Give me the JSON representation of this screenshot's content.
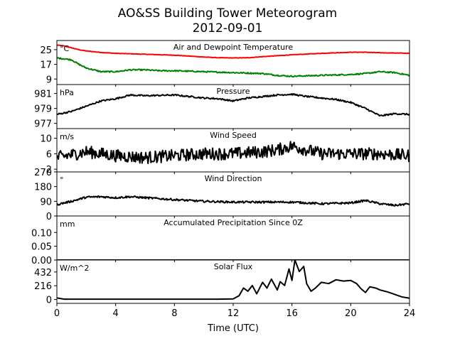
{
  "title_line1": "AO&SS Building Tower Meteorogram",
  "title_line2": "2012-09-01",
  "xlabel": "Time (UTC)",
  "x_ticks": [
    "0",
    "4",
    "8",
    "12",
    "16",
    "20",
    "24"
  ],
  "chart_data": {
    "type": "line",
    "xlim": [
      0,
      24
    ],
    "x_ticks": [
      0,
      4,
      8,
      12,
      16,
      20,
      24
    ],
    "xlabel": "Time (UTC)",
    "panels": [
      {
        "key": "temp",
        "title": "Air and Dewpoint Temperature",
        "unit": "°C",
        "ylim": [
          6,
          30
        ],
        "yticks": [
          9,
          17,
          25
        ],
        "ytick_labels": [
          "9",
          "17",
          "25"
        ],
        "series": [
          {
            "color": "#ff0000",
            "noise": 0.12,
            "points": [
              [
                0,
                27.5
              ],
              [
                0.5,
                27
              ],
              [
                1,
                26
              ],
              [
                1.5,
                25
              ],
              [
                2,
                24.3
              ],
              [
                3,
                23.5
              ],
              [
                4,
                23
              ],
              [
                6,
                22.5
              ],
              [
                8,
                22
              ],
              [
                10,
                21
              ],
              [
                11,
                20.6
              ],
              [
                12,
                20.5
              ],
              [
                13,
                20.6
              ],
              [
                14,
                21.2
              ],
              [
                16,
                22.2
              ],
              [
                18,
                23
              ],
              [
                20,
                23.6
              ],
              [
                21,
                23.6
              ],
              [
                22,
                23.3
              ],
              [
                23,
                23.2
              ],
              [
                24,
                23
              ]
            ]
          },
          {
            "color": "#008000",
            "noise": 0.35,
            "points": [
              [
                0,
                20.5
              ],
              [
                0.5,
                20
              ],
              [
                1,
                19.5
              ],
              [
                1.5,
                17
              ],
              [
                2,
                15
              ],
              [
                3,
                13
              ],
              [
                4,
                13
              ],
              [
                5,
                14
              ],
              [
                6,
                14
              ],
              [
                7,
                13.5
              ],
              [
                8,
                13.5
              ],
              [
                10,
                13
              ],
              [
                12,
                12.5
              ],
              [
                14,
                12
              ],
              [
                15,
                11
              ],
              [
                16,
                10.5
              ],
              [
                18,
                11
              ],
              [
                20,
                11.5
              ],
              [
                21,
                12
              ],
              [
                22,
                13
              ],
              [
                23,
                12.5
              ],
              [
                24,
                11
              ]
            ]
          }
        ]
      },
      {
        "key": "pressure",
        "title": "Pressure",
        "unit": "hPa",
        "ylim": [
          976.3,
          982.2
        ],
        "yticks": [
          977,
          979,
          981
        ],
        "ytick_labels": [
          "977",
          "979",
          "981"
        ],
        "series": [
          {
            "color": "#000000",
            "noise": 0.1,
            "points": [
              [
                0,
                978.2
              ],
              [
                1,
                978.6
              ],
              [
                2,
                979.3
              ],
              [
                3,
                980
              ],
              [
                4,
                980.3
              ],
              [
                5,
                980.8
              ],
              [
                6,
                980.7
              ],
              [
                8,
                980.8
              ],
              [
                10,
                980.4
              ],
              [
                11,
                980.3
              ],
              [
                12,
                980
              ],
              [
                13,
                980.4
              ],
              [
                14,
                980.6
              ],
              [
                15,
                980.8
              ],
              [
                16,
                980.9
              ],
              [
                17,
                980.6
              ],
              [
                18,
                980.4
              ],
              [
                19,
                980.2
              ],
              [
                20,
                979.8
              ],
              [
                21,
                979
              ],
              [
                22,
                978
              ],
              [
                23,
                978.3
              ],
              [
                24,
                978.2
              ]
            ]
          }
        ]
      },
      {
        "key": "wind_speed",
        "title": "Wind Speed",
        "unit": "m/s",
        "ylim": [
          1.3,
          12.5
        ],
        "yticks": [
          2,
          6,
          10
        ],
        "ytick_labels": [
          "2",
          "6",
          "10"
        ],
        "series": [
          {
            "color": "#000000",
            "noise": 1.6,
            "points": [
              [
                0,
                5
              ],
              [
                2,
                6.5
              ],
              [
                4,
                5.5
              ],
              [
                6,
                5
              ],
              [
                8,
                5.5
              ],
              [
                10,
                6
              ],
              [
                12,
                6
              ],
              [
                14,
                6.5
              ],
              [
                15,
                7
              ],
              [
                16,
                8
              ],
              [
                18,
                6
              ],
              [
                20,
                6
              ],
              [
                22,
                6
              ],
              [
                24,
                5.5
              ]
            ]
          }
        ]
      },
      {
        "key": "wind_dir",
        "title": "Wind Direction",
        "unit": "°",
        "ylim": [
          0,
          270
        ],
        "yticks": [
          0,
          90,
          180,
          270
        ],
        "ytick_labels": [
          "0",
          "90",
          "180",
          "270"
        ],
        "series": [
          {
            "color": "#000000",
            "noise": 6,
            "points": [
              [
                0,
                70
              ],
              [
                1,
                90
              ],
              [
                2,
                115
              ],
              [
                3,
                118
              ],
              [
                4,
                112
              ],
              [
                5,
                118
              ],
              [
                6,
                112
              ],
              [
                8,
                100
              ],
              [
                10,
                90
              ],
              [
                12,
                85
              ],
              [
                14,
                85
              ],
              [
                16,
                85
              ],
              [
                18,
                75
              ],
              [
                20,
                80
              ],
              [
                21,
                95
              ],
              [
                22,
                75
              ],
              [
                23,
                65
              ],
              [
                24,
                75
              ]
            ]
          }
        ]
      },
      {
        "key": "precip",
        "title": "Accumulated Precipitation Since 0Z",
        "unit": "mm",
        "ylim": [
          0,
          0.16
        ],
        "yticks": [
          0,
          0.05,
          0.1
        ],
        "ytick_labels": [
          "0.00",
          "0.05",
          "0.10"
        ],
        "series": [
          {
            "color": "#000000",
            "noise": 0,
            "points": [
              [
                0,
                0
              ],
              [
                24,
                0
              ]
            ]
          }
        ]
      },
      {
        "key": "solar",
        "title": "Solar Flux",
        "unit": "W/m^2",
        "ylim": [
          -60,
          620
        ],
        "yticks": [
          0,
          216,
          432
        ],
        "ytick_labels": [
          "0",
          "216",
          "432"
        ],
        "series": [
          {
            "color": "#000000",
            "noise": 0,
            "points": [
              [
                0,
                25
              ],
              [
                0.5,
                5
              ],
              [
                11,
                5
              ],
              [
                12,
                10
              ],
              [
                12.4,
                60
              ],
              [
                12.7,
                180
              ],
              [
                13,
                130
              ],
              [
                13.3,
                220
              ],
              [
                13.6,
                90
              ],
              [
                14,
                270
              ],
              [
                14.3,
                180
              ],
              [
                14.6,
                320
              ],
              [
                15,
                150
              ],
              [
                15.2,
                280
              ],
              [
                15.5,
                220
              ],
              [
                15.8,
                480
              ],
              [
                16,
                300
              ],
              [
                16.2,
                620
              ],
              [
                16.5,
                440
              ],
              [
                16.8,
                520
              ],
              [
                17,
                250
              ],
              [
                17.3,
                130
              ],
              [
                17.6,
                180
              ],
              [
                18,
                270
              ],
              [
                18.5,
                250
              ],
              [
                19,
                310
              ],
              [
                19.5,
                290
              ],
              [
                20,
                300
              ],
              [
                20.4,
                250
              ],
              [
                20.7,
                170
              ],
              [
                21,
                110
              ],
              [
                21.3,
                200
              ],
              [
                21.7,
                180
              ],
              [
                22,
                150
              ],
              [
                22.5,
                120
              ],
              [
                23,
                80
              ],
              [
                23.5,
                40
              ],
              [
                24,
                20
              ]
            ]
          }
        ]
      }
    ]
  }
}
